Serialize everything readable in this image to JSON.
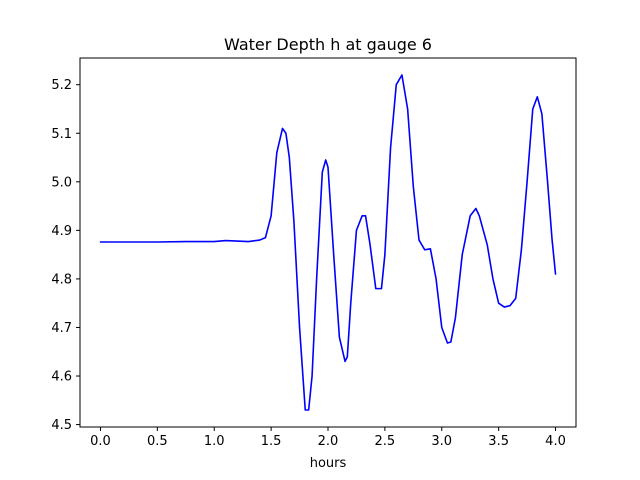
{
  "chart_data": {
    "type": "line",
    "title": "Water Depth h at gauge 6",
    "xlabel": "hours",
    "ylabel": "",
    "xlim": [
      -0.18,
      4.18
    ],
    "ylim": [
      4.495,
      5.255
    ],
    "xticks": [
      0.0,
      0.5,
      1.0,
      1.5,
      2.0,
      2.5,
      3.0,
      3.5,
      4.0
    ],
    "xtick_labels": [
      "0.0",
      "0.5",
      "1.0",
      "1.5",
      "2.0",
      "2.5",
      "3.0",
      "3.5",
      "4.0"
    ],
    "yticks": [
      4.5,
      4.6,
      4.7,
      4.8,
      4.9,
      5.0,
      5.1,
      5.2
    ],
    "ytick_labels": [
      "4.5",
      "4.6",
      "4.7",
      "4.8",
      "4.9",
      "5.0",
      "5.1",
      "5.2"
    ],
    "grid": false,
    "legend": "none",
    "line_color": "#0000ff",
    "series": [
      {
        "x": [
          0.0,
          0.25,
          0.5,
          0.75,
          1.0,
          1.1,
          1.2,
          1.3,
          1.4,
          1.45,
          1.5,
          1.55,
          1.6,
          1.63,
          1.66,
          1.7,
          1.75,
          1.8,
          1.83,
          1.86,
          1.9,
          1.95,
          1.98,
          2.0,
          2.05,
          2.1,
          2.15,
          2.17,
          2.2,
          2.25,
          2.3,
          2.33,
          2.37,
          2.42,
          2.47,
          2.5,
          2.55,
          2.6,
          2.65,
          2.7,
          2.75,
          2.8,
          2.85,
          2.9,
          2.95,
          3.0,
          3.05,
          3.08,
          3.12,
          3.18,
          3.25,
          3.3,
          3.33,
          3.4,
          3.45,
          3.5,
          3.55,
          3.6,
          3.65,
          3.7,
          3.75,
          3.8,
          3.84,
          3.88,
          3.93,
          3.97,
          4.0
        ],
        "y": [
          4.876,
          4.876,
          4.876,
          4.877,
          4.877,
          4.879,
          4.878,
          4.877,
          4.88,
          4.885,
          4.93,
          5.06,
          5.11,
          5.1,
          5.05,
          4.92,
          4.7,
          4.53,
          4.53,
          4.6,
          4.8,
          5.02,
          5.045,
          5.03,
          4.85,
          4.68,
          4.63,
          4.64,
          4.75,
          4.9,
          4.93,
          4.93,
          4.87,
          4.78,
          4.78,
          4.85,
          5.07,
          5.2,
          5.22,
          5.15,
          4.99,
          4.88,
          4.86,
          4.862,
          4.8,
          4.7,
          4.668,
          4.67,
          4.72,
          4.85,
          4.93,
          4.945,
          4.93,
          4.87,
          4.8,
          4.75,
          4.742,
          4.745,
          4.76,
          4.86,
          5.0,
          5.15,
          5.175,
          5.14,
          5.0,
          4.88,
          4.81
        ]
      }
    ]
  }
}
